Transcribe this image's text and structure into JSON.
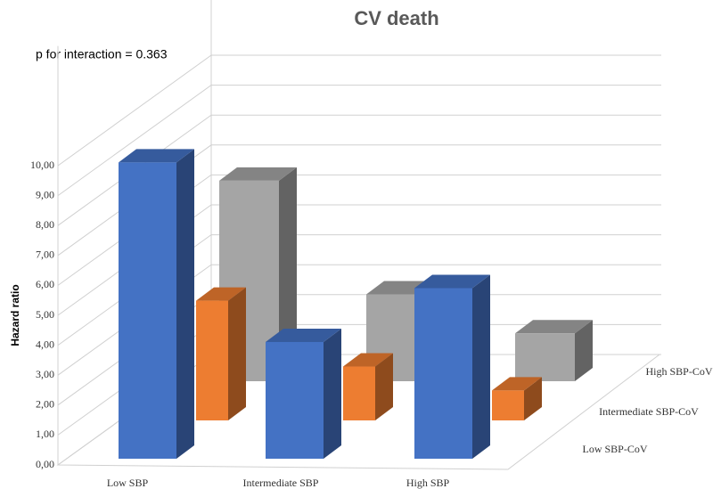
{
  "chart_data": {
    "type": "bar3d",
    "title": "CV death",
    "annotation": "p for interaction = 0.363",
    "y_label": "Hazard ratio",
    "categories": [
      "Low SBP",
      "Intermediate SBP",
      "High SBP"
    ],
    "series": [
      {
        "name": "Low SBP-CoV",
        "color": "#4472c4",
        "values": [
          9.9,
          3.9,
          5.7
        ]
      },
      {
        "name": "Intermediate SBP-CoV",
        "color": "#ed7d31",
        "values": [
          4.0,
          1.8,
          1.0
        ]
      },
      {
        "name": "High SBP-CoV",
        "color": "#a5a5a5",
        "values": [
          6.7,
          2.9,
          1.6
        ]
      }
    ],
    "ylim": [
      0,
      14
    ],
    "yticks": [
      {
        "value": 0,
        "label": "0,00"
      },
      {
        "value": 1,
        "label": "1,00"
      },
      {
        "value": 2,
        "label": "2,00"
      },
      {
        "value": 3,
        "label": "3,00"
      },
      {
        "value": 4,
        "label": "4,00"
      },
      {
        "value": 5,
        "label": "5,00"
      },
      {
        "value": 6,
        "label": "6,00"
      },
      {
        "value": 7,
        "label": "7,00"
      },
      {
        "value": 8,
        "label": "8,00"
      },
      {
        "value": 9,
        "label": "9,00"
      },
      {
        "value": 10,
        "label": "10,00"
      }
    ],
    "grid": true
  }
}
